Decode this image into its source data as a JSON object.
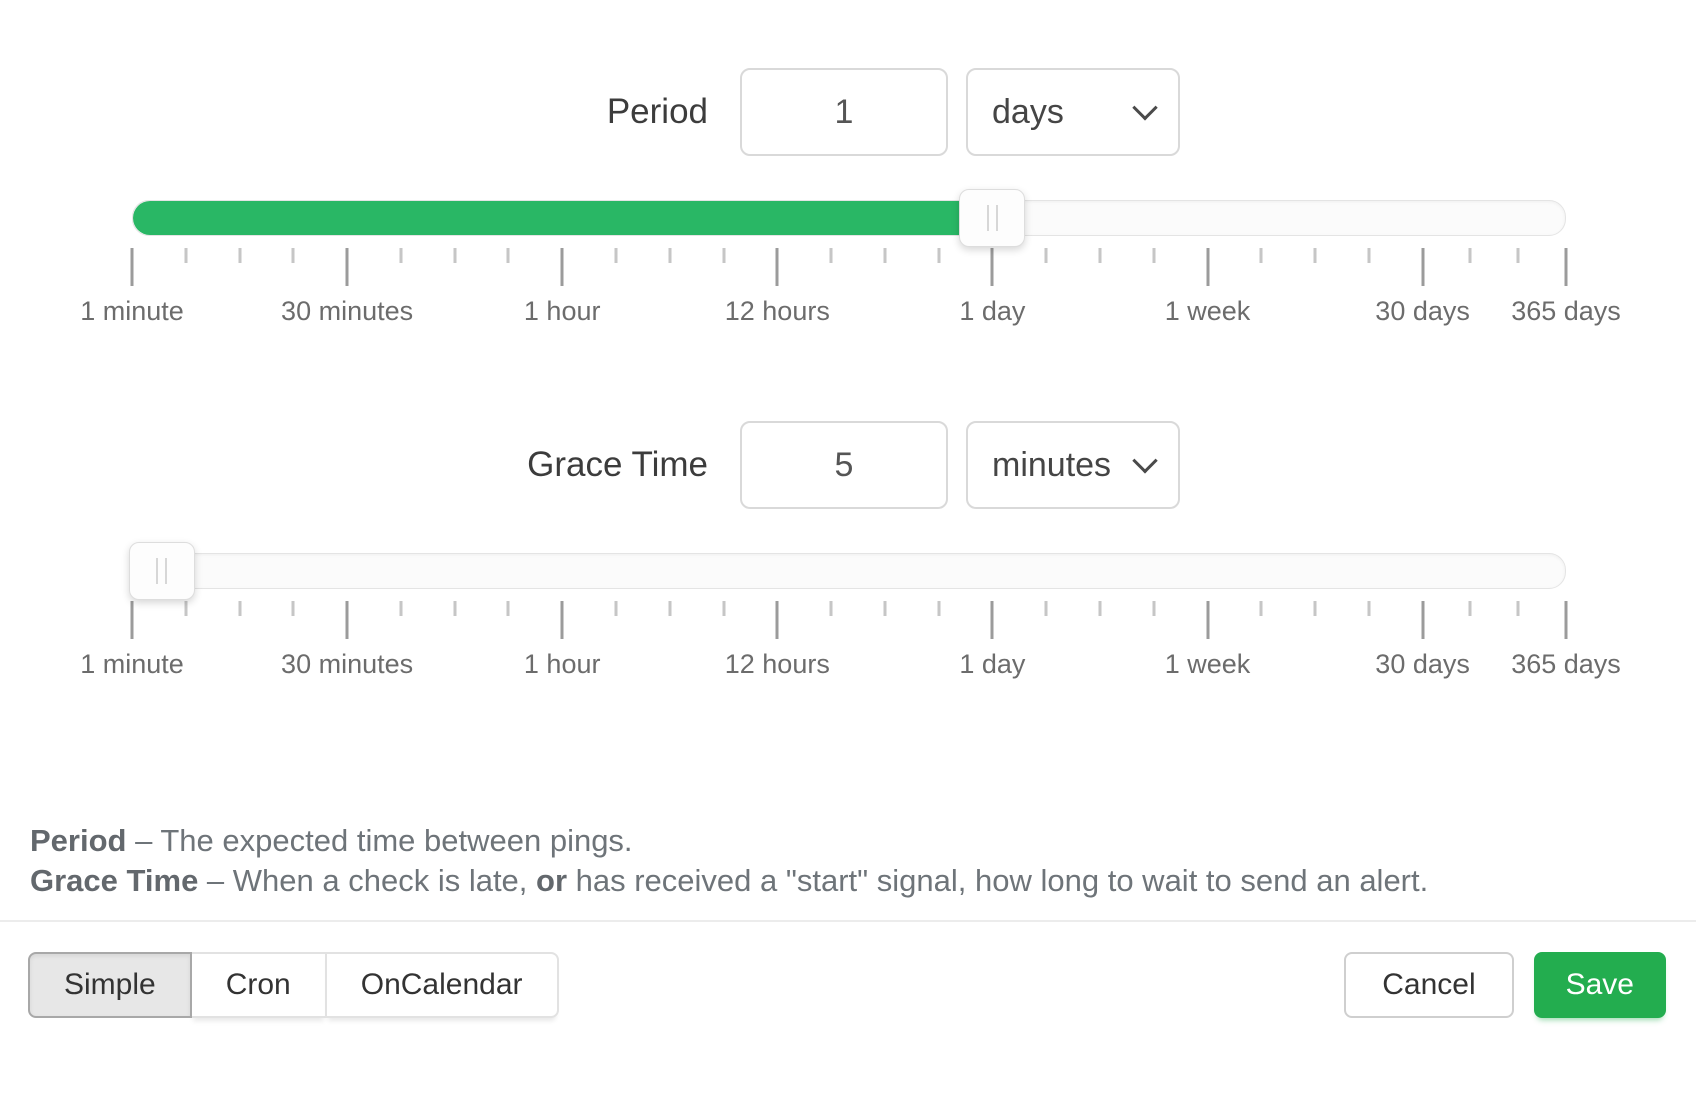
{
  "period": {
    "label": "Period",
    "value": "1",
    "unit": "days",
    "slider": {
      "fill_percent": 60,
      "handle_percent": 60
    }
  },
  "grace": {
    "label": "Grace Time",
    "value": "5",
    "unit": "minutes",
    "slider": {
      "fill_percent": 2,
      "handle_percent": 2
    }
  },
  "ruler": {
    "labels": [
      "1 minute",
      "30 minutes",
      "1 hour",
      "12 hours",
      "1 day",
      "1 week",
      "30 days",
      "365 days"
    ],
    "major_percents": [
      0,
      15,
      30,
      45,
      60,
      75,
      90,
      100
    ],
    "minor_counts": [
      3,
      3,
      3,
      3,
      3,
      3,
      2
    ]
  },
  "help": {
    "line1_term": "Period",
    "line1_rest": " – The expected time between pings.",
    "line2_term": "Grace Time",
    "line2_before_or": " – When a check is late, ",
    "line2_or": "or",
    "line2_after_or": " has received a \"start\" signal, how long to wait to send an alert."
  },
  "footer": {
    "mode_buttons": [
      {
        "id": "simple",
        "label": "Simple",
        "active": true
      },
      {
        "id": "cron",
        "label": "Cron",
        "active": false
      },
      {
        "id": "oncalendar",
        "label": "OnCalendar",
        "active": false
      }
    ],
    "cancel_label": "Cancel",
    "save_label": "Save"
  },
  "colors": {
    "slider_fill_green": "#29b765",
    "save_button_green": "#23ad4f"
  }
}
